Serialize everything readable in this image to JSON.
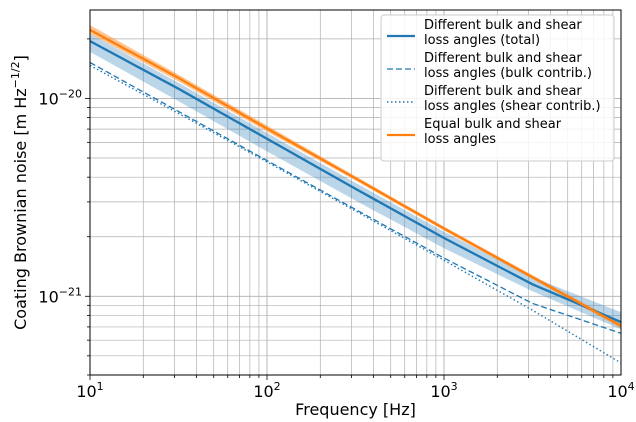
{
  "chart_data": {
    "type": "line",
    "xlabel": "Frequency [Hz]",
    "ylabel_main": "Coating Brownian noise [m Hz",
    "ylabel_exp": "−1/2",
    "ylabel_close": "]",
    "xscale": "log",
    "yscale": "log",
    "xlim": [
      10,
      10000
    ],
    "ylim": [
      4e-22,
      2.8e-20
    ],
    "grid": true,
    "grid_minor": true,
    "legend_position": "top-right",
    "x_ticks": [
      {
        "value": 10,
        "base": "10",
        "exp": "1"
      },
      {
        "value": 100,
        "base": "10",
        "exp": "2"
      },
      {
        "value": 1000,
        "base": "10",
        "exp": "3"
      },
      {
        "value": 10000,
        "base": "10",
        "exp": "4"
      }
    ],
    "y_ticks": [
      {
        "value": 1e-21,
        "base": "10",
        "exp": "−21"
      },
      {
        "value": 1e-20,
        "base": "10",
        "exp": "−20"
      }
    ],
    "x": [
      10,
      31.6,
      100,
      316,
      1000,
      3162,
      10000
    ],
    "series": [
      {
        "name": "Different bulk and shear loss angles (total)",
        "legend_lines": [
          "Different bulk and shear",
          "loss angles (total)"
        ],
        "color": "#1f77b4",
        "style": "solid",
        "values": [
          1.95e-20,
          1.12e-20,
          6.25e-21,
          3.5e-21,
          1.97e-21,
          1.15e-21,
          7.4e-22
        ],
        "band_upper": [
          2.12e-20,
          1.2e-20,
          6.7e-21,
          3.75e-21,
          2.12e-21,
          1.25e-21,
          8.3e-22
        ],
        "band_lower": [
          1.72e-20,
          9.7e-21,
          5.4e-21,
          3.05e-21,
          1.75e-21,
          1.06e-21,
          6.8e-22
        ]
      },
      {
        "name": "Different bulk and shear loss angles (bulk contrib.)",
        "legend_lines": [
          "Different bulk and shear",
          "loss angles (bulk contrib.)"
        ],
        "color": "#1f77b4",
        "style": "dashed",
        "values": [
          1.52e-20,
          8.6e-21,
          4.85e-21,
          2.75e-21,
          1.56e-21,
          9.2e-22,
          6.5e-22
        ]
      },
      {
        "name": "Different bulk and shear loss angles (shear contrib.)",
        "legend_lines": [
          "Different bulk and shear",
          "loss angles (shear contrib.)"
        ],
        "color": "#1f77b4",
        "style": "dotted",
        "values": [
          1.47e-20,
          8.4e-21,
          4.78e-21,
          2.7e-21,
          1.52e-21,
          8.5e-22,
          4.6e-22
        ]
      },
      {
        "name": "Equal bulk and shear loss angles",
        "legend_lines": [
          "Equal bulk and shear",
          "loss angles"
        ],
        "color": "#ff7f0e",
        "style": "solid",
        "values": [
          2.22e-20,
          1.27e-20,
          7.05e-21,
          3.95e-21,
          2.2e-21,
          1.25e-21,
          7.1e-22
        ],
        "band_upper": [
          2.35e-20,
          1.32e-20,
          7.3e-21,
          4.05e-21,
          2.25e-21,
          1.28e-21,
          7.3e-22
        ],
        "band_lower": [
          2.12e-20,
          1.22e-20,
          6.8e-21,
          3.85e-21,
          2.15e-21,
          1.22e-21,
          6.9e-22
        ]
      }
    ]
  }
}
